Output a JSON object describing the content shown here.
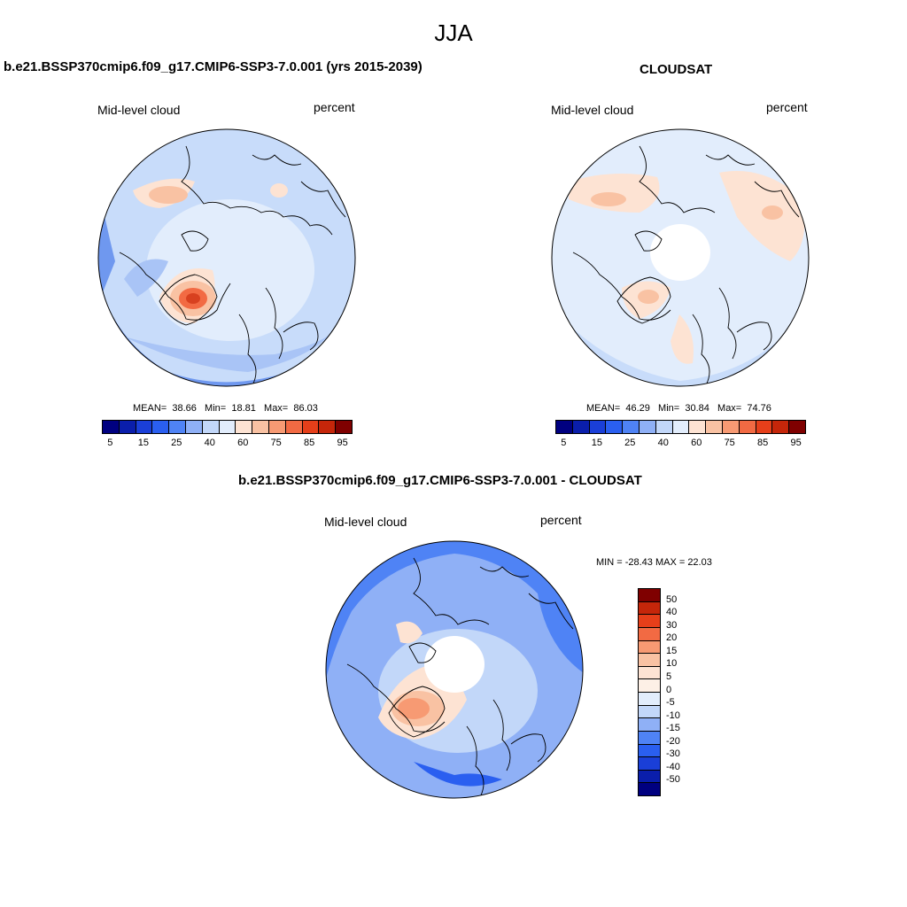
{
  "season": "JJA",
  "panels": {
    "model": {
      "title": "b.e21.BSSP370cmip6.f09_g17.CMIP6-SSP3-7.0.001 (yrs 2015-2039)",
      "variable": "Mid-level cloud",
      "units": "percent",
      "mean_label": "MEAN=",
      "mean": "38.66",
      "min_label": "Min=",
      "min": "18.81",
      "max_label": "Max=",
      "max": "86.03"
    },
    "obs": {
      "title": "CLOUDSAT",
      "variable": "Mid-level cloud",
      "units": "percent",
      "mean_label": "MEAN=",
      "mean": "46.29",
      "min_label": "Min=",
      "min": "30.84",
      "max_label": "Max=",
      "max": "74.76"
    },
    "diff": {
      "title": "b.e21.BSSP370cmip6.f09_g17.CMIP6-SSP3-7.0.001 - CLOUDSAT",
      "variable": "Mid-level cloud",
      "units": "percent",
      "minmax_text": "MIN = -28.43 MAX =  22.03"
    }
  },
  "colorbar_abs": {
    "tick_labels": [
      "5",
      "15",
      "25",
      "40",
      "60",
      "75",
      "85",
      "95"
    ],
    "colors": [
      "#000080",
      "#0a1eab",
      "#1a3fd8",
      "#2a5ff0",
      "#4f83f5",
      "#8fb0f6",
      "#c2d7f9",
      "#e2edfc",
      "#fde3d3",
      "#f9c2a3",
      "#f79a73",
      "#f26a43",
      "#e63f1a",
      "#c5260a",
      "#7f0000"
    ]
  },
  "colorbar_diff": {
    "tick_labels": [
      "50",
      "40",
      "30",
      "20",
      "15",
      "10",
      "5",
      "0",
      "-5",
      "-10",
      "-15",
      "-20",
      "-30",
      "-40",
      "-50"
    ],
    "colors": [
      "#7f0000",
      "#c5260a",
      "#e63f1a",
      "#f26a43",
      "#f79a73",
      "#f9c2a3",
      "#fde3d3",
      "#fdf0e6",
      "#e2edfc",
      "#c2d7f9",
      "#8fb0f6",
      "#4f83f5",
      "#2a5ff0",
      "#1a3fd8",
      "#0a1eab",
      "#000080"
    ]
  },
  "map_palette": {
    "abs_base": "#c8dcfa",
    "abs_pale": "#e2edfc",
    "abs_mid": "#a9c4f6",
    "abs_dark": "#6f98ef",
    "warm_pale": "#fde3d3",
    "warm_mid": "#f9c2a3",
    "warm_strong": "#f26a43",
    "warm_peak": "#d8401f",
    "diff_base": "#8fb0f6",
    "diff_dark": "#4f83f5",
    "diff_darker": "#2a5ff0",
    "diff_pale": "#c2d7f9",
    "coast": "#000000"
  }
}
